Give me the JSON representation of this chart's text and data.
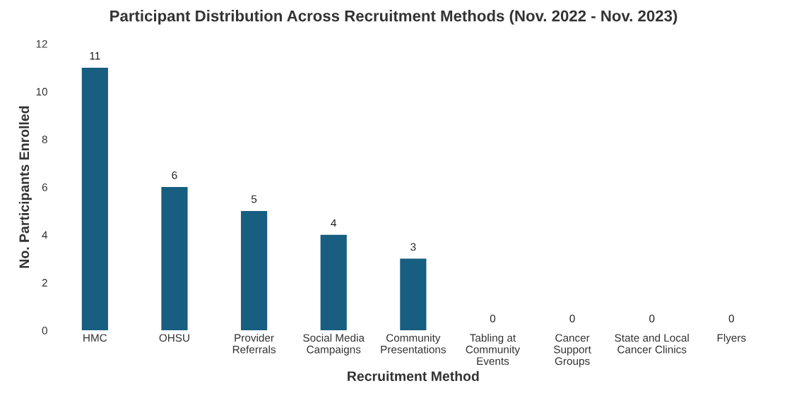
{
  "chart_data": {
    "type": "bar",
    "title": "Participant Distribution Across Recruitment Methods (Nov. 2022 - Nov. 2023)",
    "xlabel": "Recruitment Method",
    "ylabel": "No. Participants Enrolled",
    "categories": [
      "HMC",
      "OHSU",
      "Provider\nReferrals",
      "Social Media\nCampaigns",
      "Community\nPresentations",
      "Tabling at\nCommunity\nEvents",
      "Cancer\nSupport\nGroups",
      "State and Local\nCancer Clinics",
      "Flyers"
    ],
    "values": [
      11,
      6,
      5,
      4,
      3,
      0,
      0,
      0,
      0
    ],
    "color": "#175e80",
    "ylim": [
      0,
      12
    ],
    "yticks": [
      0,
      2,
      4,
      6,
      8,
      10,
      12
    ],
    "grid": false,
    "legend": false,
    "data_labels": true
  }
}
